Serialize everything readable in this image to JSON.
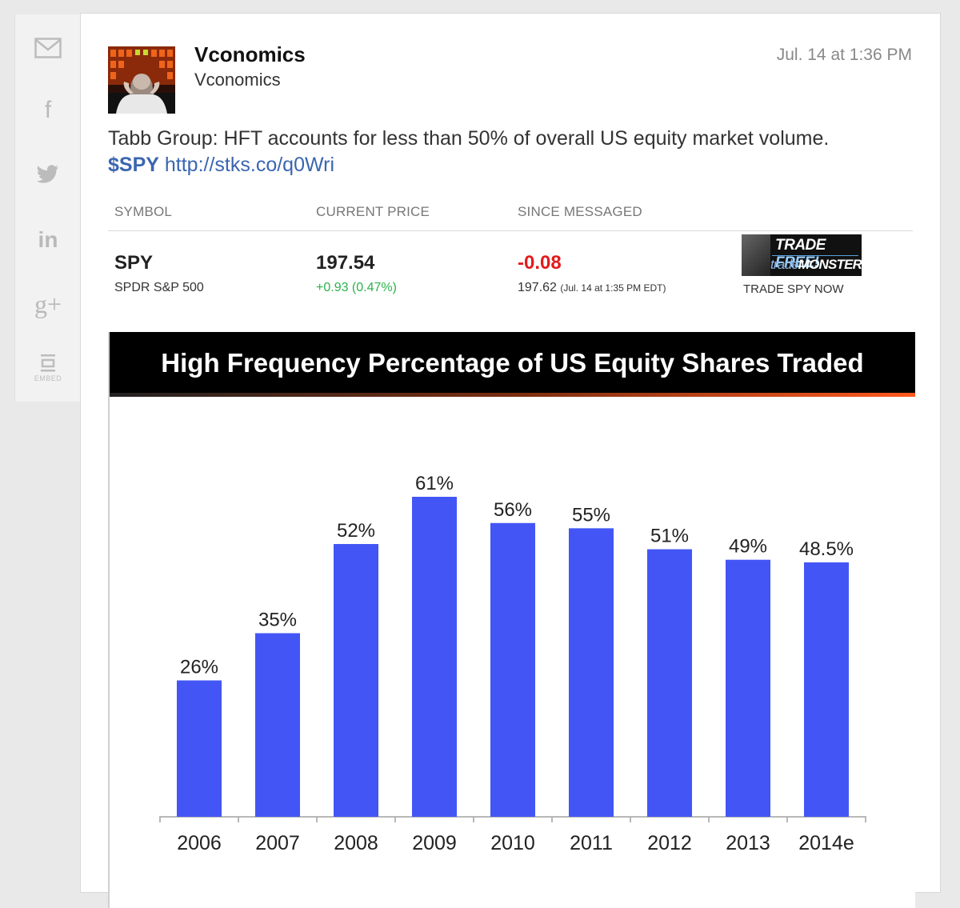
{
  "sidebar": {
    "buttons": [
      {
        "icon": "mail-icon",
        "label": ""
      },
      {
        "icon": "facebook-icon",
        "label": "f"
      },
      {
        "icon": "twitter-icon",
        "label": ""
      },
      {
        "icon": "linkedin-icon",
        "label": "in"
      },
      {
        "icon": "google-plus-icon",
        "label": "g+"
      },
      {
        "icon": "embed-icon",
        "label": "EMBED"
      }
    ]
  },
  "message": {
    "user_name": "Vconomics",
    "user_handle": "Vconomics",
    "timestamp": "Jul. 14 at 1:36 PM",
    "text": "Tabb Group: HFT accounts for less than 50% of overall US equity market volume.",
    "cashtag": "$SPY",
    "link": "http://stks.co/q0Wri"
  },
  "quote_table": {
    "headers": [
      "SYMBOL",
      "CURRENT PRICE",
      "SINCE MESSAGED"
    ],
    "symbol": "SPY",
    "symbol_name": "SPDR S&P 500",
    "current_price": "197.54",
    "price_change": "+0.93 (0.47%)",
    "since_change": "-0.08",
    "since_price": "197.62",
    "since_time": "(Jul. 14 at 1:35 PM EDT)",
    "ad": {
      "line1_a": "TRADE ",
      "line1_b": "FREE!",
      "line2_a": "trade",
      "line2_b": "MONSTER",
      "cta": "TRADE SPY NOW"
    }
  },
  "colors": {
    "bar": "#4356f5",
    "price_up": "#2bb34b",
    "price_down": "#e31b1b",
    "link": "#3a66b0"
  },
  "chart_data": {
    "type": "bar",
    "title": "High Frequency Percentage of US Equity Shares Traded",
    "categories": [
      "2006",
      "2007",
      "2008",
      "2009",
      "2010",
      "2011",
      "2012",
      "2013",
      "2014e"
    ],
    "values": [
      26,
      35,
      52,
      61,
      56,
      55,
      51,
      49,
      48.5
    ],
    "data_labels": [
      "26%",
      "35%",
      "52%",
      "61%",
      "56%",
      "55%",
      "51%",
      "49%",
      "48.5%"
    ],
    "xlabel": "",
    "ylabel": "",
    "ylim": [
      0,
      61
    ],
    "grid": false,
    "legend": "none"
  }
}
